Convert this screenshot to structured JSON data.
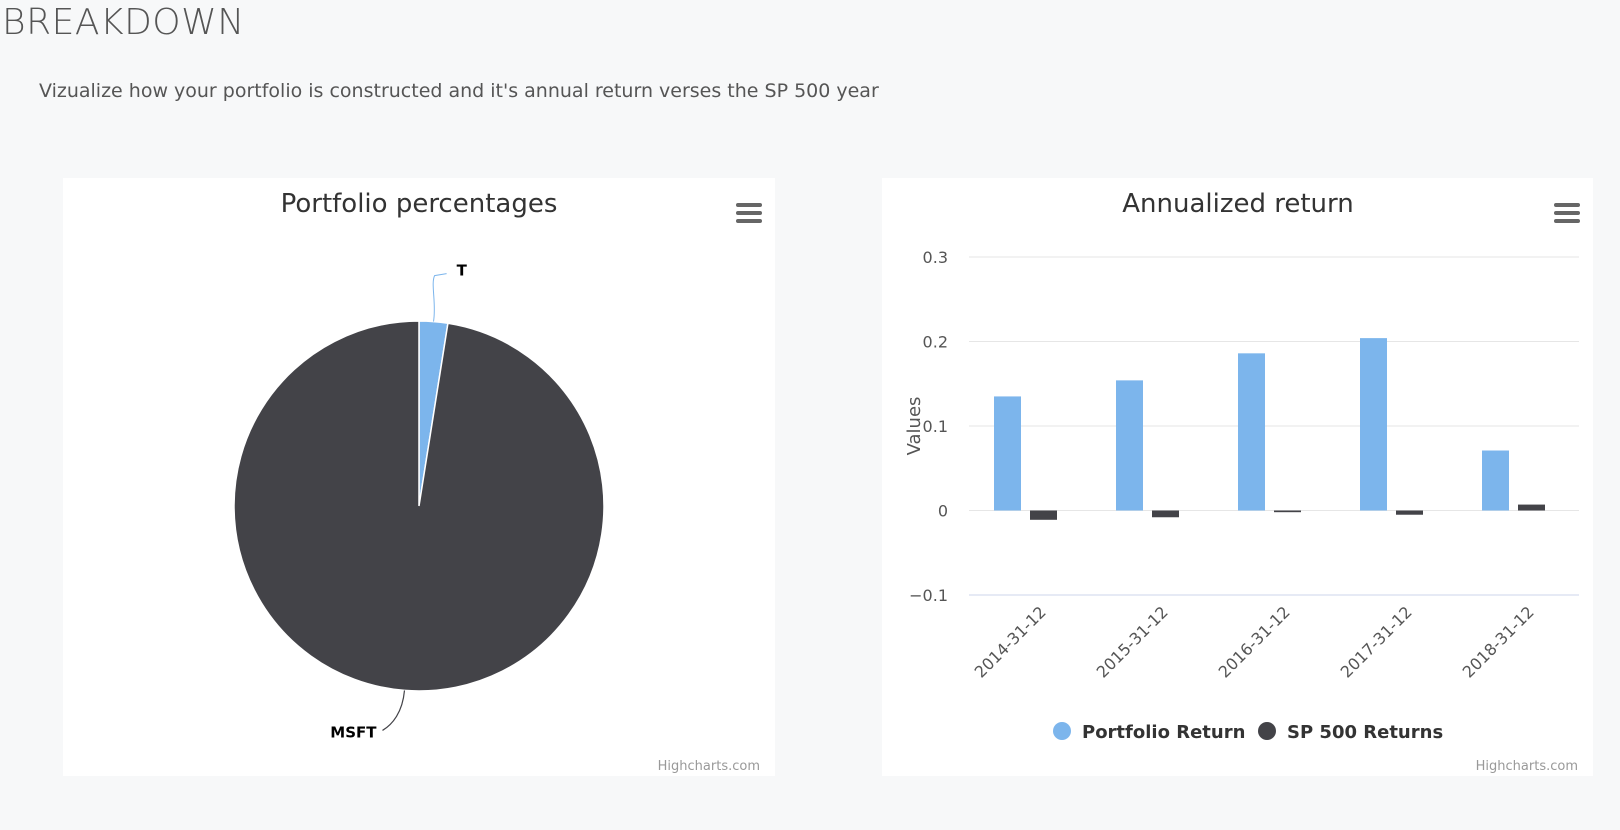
{
  "header": {
    "title": "BREAKDOWN",
    "subtitle": "Vizualize how your portfolio is constructed and it's annual return verses the SP 500 year"
  },
  "pie_chart": {
    "menu_icon": "hamburger-menu-icon",
    "credits": "Highcharts.com"
  },
  "bar_chart": {
    "menu_icon": "hamburger-menu-icon",
    "credits": "Highcharts.com"
  },
  "chart_data": [
    {
      "type": "pie",
      "title": "Portfolio percentages",
      "slices": [
        {
          "name": "T",
          "value": 2.5,
          "color": "#7cb5ec"
        },
        {
          "name": "MSFT",
          "value": 97.5,
          "color": "#434348"
        }
      ]
    },
    {
      "type": "bar",
      "title": "Annualized return",
      "xlabel": "",
      "ylabel": "Values",
      "ylim": [
        -0.1,
        0.3
      ],
      "yticks": [
        "0.3",
        "0.2",
        "0.1",
        "0",
        "−0.1"
      ],
      "ytick_values": [
        0.3,
        0.2,
        0.1,
        0,
        -0.1
      ],
      "categories": [
        "2014-31-12",
        "2015-31-12",
        "2016-31-12",
        "2017-31-12",
        "2018-31-12"
      ],
      "grid": true,
      "legend_placement": "bottom-center",
      "series": [
        {
          "name": "Portfolio Return",
          "color": "#7cb5ec",
          "values": [
            0.135,
            0.154,
            0.186,
            0.204,
            0.071
          ]
        },
        {
          "name": "SP 500 Returns",
          "color": "#434348",
          "values": [
            -0.011,
            -0.008,
            -0.002,
            -0.005,
            0.007
          ]
        }
      ]
    }
  ]
}
